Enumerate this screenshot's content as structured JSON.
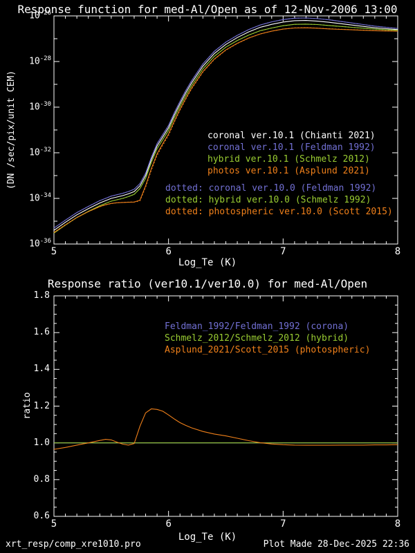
{
  "footer": {
    "left": "xrt_resp/comp_xre1010.pro",
    "right": "Plot Made 28-Dec-2025 22:36"
  },
  "colors": {
    "frame": "#FFFFFF",
    "white": "#FFFFFF",
    "blue": "#7270D4",
    "green": "#9ACD32",
    "orange": "#F0801A"
  },
  "chart_data": [
    {
      "type": "line",
      "title": "Response function for med-Al/Open as of 12-Nov-2006 13:00",
      "xlabel": "Log_Te (K)",
      "ylabel": "(DN /sec/pix/unit CEM)",
      "x_range": [
        5,
        8
      ],
      "x_ticks": [
        5,
        6,
        7,
        8
      ],
      "x_minor_step": 0.1,
      "y_scale": "log10",
      "y_exponent_range": [
        -36,
        -26
      ],
      "y_tick_exponents_labeled": [
        -26,
        -28,
        -30,
        -32,
        -34,
        -36
      ],
      "grid": false,
      "legend_position": "inside-right",
      "x": [
        5.0,
        5.1,
        5.2,
        5.3,
        5.4,
        5.45,
        5.5,
        5.55,
        5.6,
        5.65,
        5.7,
        5.75,
        5.8,
        5.85,
        5.9,
        5.95,
        6.0,
        6.05,
        6.1,
        6.15,
        6.2,
        6.3,
        6.4,
        6.5,
        6.6,
        6.7,
        6.8,
        6.9,
        7.0,
        7.1,
        7.2,
        7.3,
        7.4,
        7.5,
        7.6,
        7.7,
        7.8,
        7.9,
        8.0
      ],
      "series": [
        {
          "name": "coronal ver.10.1 (Chianti 2021)",
          "color": "#FFFFFF",
          "style": "solid",
          "log10_values": [
            -35.4,
            -35.05,
            -34.72,
            -34.45,
            -34.2,
            -34.1,
            -34.0,
            -33.94,
            -33.88,
            -33.8,
            -33.7,
            -33.45,
            -33.0,
            -32.3,
            -31.7,
            -31.3,
            -30.9,
            -30.35,
            -29.85,
            -29.38,
            -28.95,
            -28.2,
            -27.65,
            -27.25,
            -26.95,
            -26.7,
            -26.5,
            -26.37,
            -26.27,
            -26.21,
            -26.2,
            -26.23,
            -26.28,
            -26.34,
            -26.4,
            -26.46,
            -26.52,
            -26.56,
            -26.6
          ]
        },
        {
          "name": "coronal ver.10.1 (Feldman 1992)",
          "color": "#7270D4",
          "style": "solid",
          "log10_values": [
            -35.3,
            -34.95,
            -34.62,
            -34.35,
            -34.1,
            -34.0,
            -33.9,
            -33.84,
            -33.78,
            -33.7,
            -33.6,
            -33.35,
            -32.9,
            -32.2,
            -31.6,
            -31.2,
            -30.8,
            -30.25,
            -29.75,
            -29.28,
            -28.85,
            -28.1,
            -27.55,
            -27.15,
            -26.85,
            -26.6,
            -26.4,
            -26.26,
            -26.16,
            -26.1,
            -26.09,
            -26.12,
            -26.17,
            -26.24,
            -26.31,
            -26.38,
            -26.45,
            -26.5,
            -26.55
          ]
        },
        {
          "name": "hybrid ver.10.1 (Schmelz 2012)",
          "color": "#9ACD32",
          "style": "solid",
          "log10_values": [
            -35.52,
            -35.17,
            -34.84,
            -34.57,
            -34.32,
            -34.22,
            -34.12,
            -34.06,
            -34.0,
            -33.92,
            -33.82,
            -33.57,
            -33.12,
            -32.42,
            -31.82,
            -31.42,
            -31.02,
            -30.47,
            -29.97,
            -29.5,
            -29.07,
            -28.32,
            -27.77,
            -27.37,
            -27.08,
            -26.84,
            -26.65,
            -26.53,
            -26.43,
            -26.37,
            -26.36,
            -26.38,
            -26.42,
            -26.46,
            -26.5,
            -26.54,
            -26.58,
            -26.61,
            -26.63
          ]
        },
        {
          "name": "photos ver.10.1 (Asplund 2021)",
          "color": "#F0801A",
          "style": "solid",
          "log10_values": [
            -35.5,
            -35.16,
            -34.84,
            -34.58,
            -34.36,
            -34.28,
            -34.22,
            -34.19,
            -34.18,
            -34.17,
            -34.16,
            -34.08,
            -33.45,
            -32.7,
            -32.05,
            -31.6,
            -31.18,
            -30.62,
            -30.1,
            -29.62,
            -29.18,
            -28.44,
            -27.89,
            -27.49,
            -27.2,
            -26.97,
            -26.79,
            -26.67,
            -26.58,
            -26.53,
            -26.52,
            -26.54,
            -26.57,
            -26.59,
            -26.61,
            -26.63,
            -26.65,
            -26.66,
            -26.67
          ]
        }
      ],
      "dotted_series": [
        {
          "name": "dotted: coronal ver.10.0 (Feldman 1992)",
          "color": "#7270D4",
          "style": "dotted",
          "derived": "solid_index 1 divided by ratio_index 0"
        },
        {
          "name": "dotted: hybrid ver.10.0 (Schmelz 1992)",
          "color": "#9ACD32",
          "style": "dotted",
          "derived": "solid_index 2 divided by ratio_index 1"
        },
        {
          "name": "dotted: photospheric ver.10.0 (Scott 2015)",
          "color": "#F0801A",
          "style": "dotted",
          "derived": "solid_index 3 divided by ratio_index 2"
        }
      ],
      "legend_solid": [
        {
          "label": "coronal ver.10.1 (Chianti 2021)",
          "color": "#FFFFFF"
        },
        {
          "label": "coronal ver.10.1 (Feldman 1992)",
          "color": "#7270D4"
        },
        {
          "label": "hybrid ver.10.1 (Schmelz 2012)",
          "color": "#9ACD32"
        },
        {
          "label": "photos ver.10.1 (Asplund 2021)",
          "color": "#F0801A"
        }
      ],
      "legend_dotted": [
        {
          "label": "dotted: coronal ver.10.0 (Feldman 1992)",
          "color": "#7270D4"
        },
        {
          "label": "dotted: hybrid ver.10.0 (Schmelz 1992)",
          "color": "#9ACD32"
        },
        {
          "label": "dotted: photospheric ver.10.0 (Scott 2015)",
          "color": "#F0801A"
        }
      ]
    },
    {
      "type": "line",
      "title": "Response ratio (ver10.1/ver10.0) for med-Al/Open",
      "xlabel": "Log_Te (K)",
      "ylabel": "ratio",
      "x_range": [
        5,
        8
      ],
      "x_ticks": [
        5,
        6,
        7,
        8
      ],
      "x_minor_step": 0.1,
      "y_range": [
        0.6,
        1.8
      ],
      "y_ticks": [
        0.6,
        0.8,
        1.0,
        1.2,
        1.4,
        1.6,
        1.8
      ],
      "y_minor_step": 0.05,
      "grid": false,
      "x": [
        5.0,
        5.1,
        5.2,
        5.3,
        5.4,
        5.45,
        5.5,
        5.55,
        5.6,
        5.65,
        5.7,
        5.75,
        5.8,
        5.85,
        5.9,
        5.95,
        6.0,
        6.05,
        6.1,
        6.15,
        6.2,
        6.3,
        6.4,
        6.5,
        6.6,
        6.7,
        6.8,
        6.9,
        7.0,
        7.1,
        7.2,
        7.3,
        7.4,
        7.5,
        7.6,
        7.7,
        7.8,
        7.9,
        8.0
      ],
      "series": [
        {
          "name": "Feldman_1992/Feldman_1992 (corona)",
          "color": "#7270D4",
          "style": "solid",
          "constant_value": 1.0
        },
        {
          "name": "Schmelz_2012/Schmelz_2012 (hybrid)",
          "color": "#9ACD32",
          "style": "solid",
          "constant_value": 1.0
        },
        {
          "name": "Asplund_2021/Scott_2015 (photospheric)",
          "color": "#F0801A",
          "style": "solid",
          "values": [
            0.965,
            0.975,
            0.988,
            1.0,
            1.013,
            1.019,
            1.016,
            1.004,
            0.993,
            0.988,
            0.996,
            1.09,
            1.163,
            1.185,
            1.182,
            1.172,
            1.152,
            1.13,
            1.11,
            1.095,
            1.082,
            1.062,
            1.048,
            1.038,
            1.025,
            1.012,
            1.001,
            0.994,
            0.99,
            0.988,
            0.987,
            0.987,
            0.987,
            0.988,
            0.988,
            0.988,
            0.989,
            0.989,
            0.99
          ]
        }
      ],
      "legend": [
        {
          "label": "Feldman_1992/Feldman_1992 (corona)",
          "color": "#7270D4"
        },
        {
          "label": "Schmelz_2012/Schmelz_2012 (hybrid)",
          "color": "#9ACD32"
        },
        {
          "label": "Asplund_2021/Scott_2015 (photospheric)",
          "color": "#F0801A"
        }
      ]
    }
  ]
}
